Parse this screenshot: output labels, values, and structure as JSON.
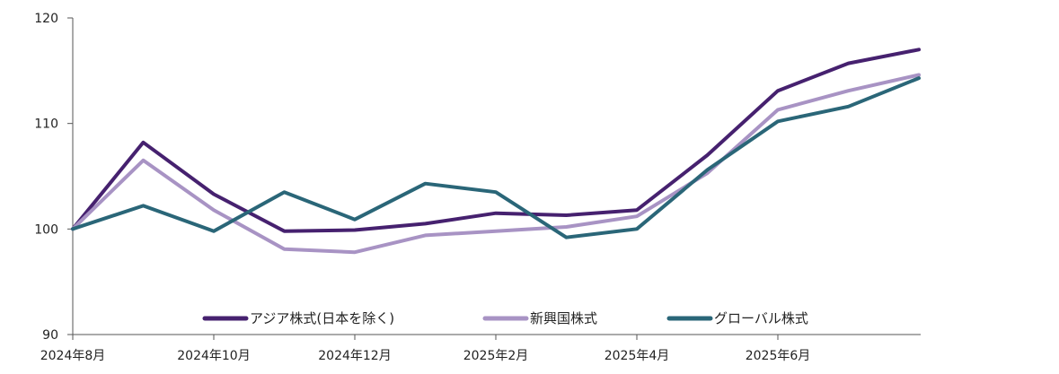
{
  "chart_data": {
    "type": "line",
    "x": [
      "2024年8月",
      "2024年9月",
      "2024年10月",
      "2024年11月",
      "2024年12月",
      "2025年1月",
      "2025年2月",
      "2025年3月",
      "2025年4月",
      "2025年5月",
      "2025年6月",
      "2025年7月",
      "2025年8月"
    ],
    "x_tick_labels": [
      "2024年8月",
      "2024年10月",
      "2024年12月",
      "2025年2月",
      "2025年4月",
      "2025年6月"
    ],
    "ylim": [
      90,
      120
    ],
    "y_ticks": [
      "90",
      "100",
      "110",
      "120"
    ],
    "grid": false,
    "legend_position": "bottom",
    "series": [
      {
        "name": "アジア株式(日本を除く)",
        "color": "#46216f",
        "values": [
          100,
          108.2,
          103.3,
          99.8,
          99.9,
          100.5,
          101.5,
          101.3,
          101.8,
          107.0,
          113.1,
          115.7,
          117.0
        ]
      },
      {
        "name": "新興国株式",
        "color": "#a893c4",
        "values": [
          100,
          106.5,
          101.8,
          98.1,
          97.8,
          99.4,
          99.8,
          100.2,
          101.2,
          105.3,
          111.3,
          113.1,
          114.6
        ]
      },
      {
        "name": "グローバル株式",
        "color": "#2a6678",
        "values": [
          100,
          102.2,
          99.8,
          103.5,
          100.9,
          104.3,
          103.5,
          99.2,
          100.0,
          105.6,
          110.2,
          111.6,
          114.3
        ]
      }
    ]
  }
}
